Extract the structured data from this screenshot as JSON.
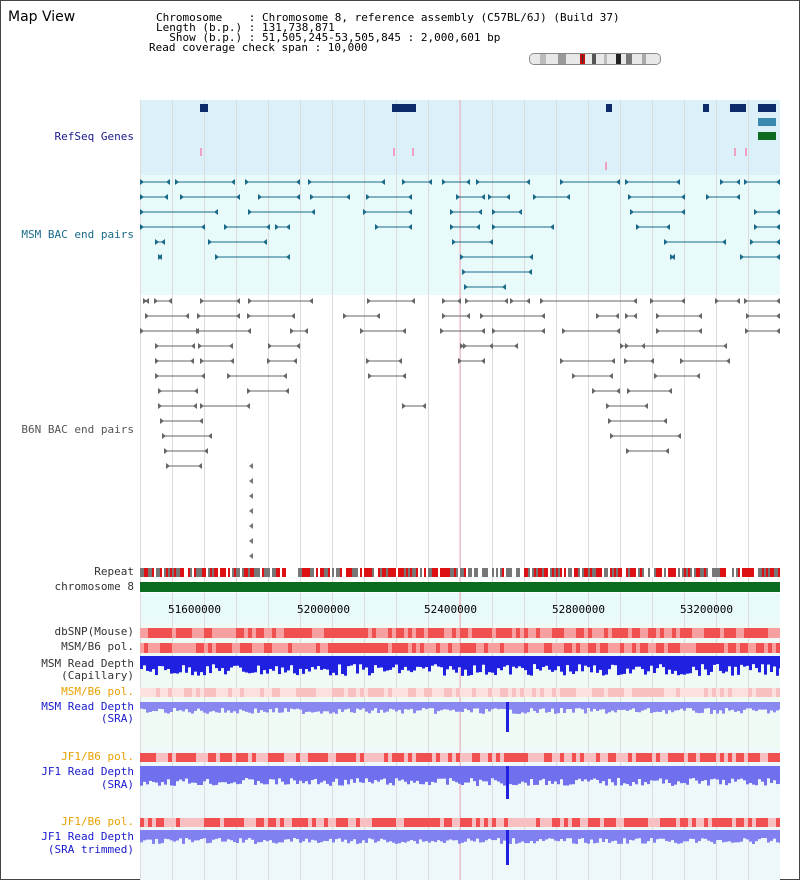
{
  "title": "Map View",
  "info": {
    "chromosome": "Chromosome    : Chromosome 8, reference assembly (C57BL/6J) (Build 37)",
    "length": "Length (b.p.) : 131,738,871",
    "show": "  Show (b.p.) : 51,505,245-53,505,845 : 2,000,601 bp",
    "coverage": "Read coverage check span : 10,000"
  },
  "tracks": {
    "refseq": "RefSeq Genes",
    "msm_bac": "MSM BAC end pairs",
    "b6n_bac": "B6N BAC end pairs",
    "repeat": "Repeat",
    "chromosome": "chromosome 8",
    "dbsnp": "dbSNP(Mouse)",
    "msm_b6_pol_1": "MSM/B6 pol.",
    "msm_read_depth_cap_1": "MSM Read Depth",
    "msm_read_depth_cap_2": "(Capillary)",
    "msm_b6_pol_2": "MSM/B6 pol.",
    "msm_read_depth_sra_1": "MSM Read Depth",
    "msm_read_depth_sra_2": "(SRA)",
    "jf1_b6_pol_1": "JF1/B6 pol.",
    "jf1_read_depth_sra_1": "JF1 Read Depth",
    "jf1_read_depth_sra_2": "(SRA)",
    "jf1_b6_pol_2": "JF1/B6 pol.",
    "jf1_read_depth_trim_1": "JF1 Read Depth",
    "jf1_read_depth_trim_2": "(SRA trimmed)"
  },
  "axis": {
    "ticks": [
      "51600000",
      "52000000",
      "52400000",
      "52800000",
      "53200000"
    ]
  },
  "colors": {
    "refseq_bg": "#dcf0fa",
    "bac_bg": "#e8fafa",
    "navy": "#0d2a6a",
    "teal": "#1a6a8a",
    "gray_feature": "#666666",
    "repeat_red": "#dd1111",
    "chrom_green": "#0b6b1e",
    "depth_blue": "#2020e0",
    "depth_light": "#8080f0",
    "pol_red": "#f05050"
  }
}
